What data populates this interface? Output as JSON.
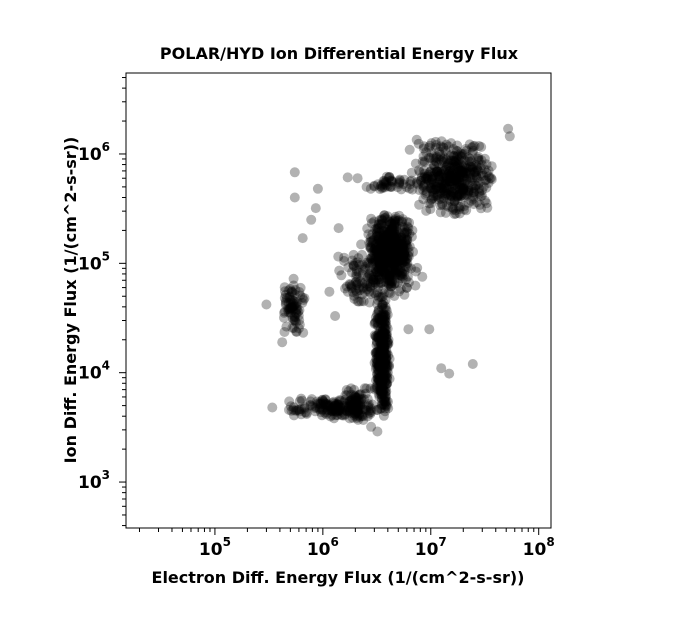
{
  "chart_data": {
    "type": "scatter",
    "title": "POLAR/HYD  Ion Differential Energy Flux",
    "xlabel": "Electron Diff. Energy Flux (1/(cm^2-s-sr))",
    "ylabel": "Ion Diff. Energy Flux (1/(cm^2-s-sr))",
    "xscale": "log",
    "yscale": "log",
    "xlim": [
      15000,
      130000000
    ],
    "ylim": [
      380,
      5500000
    ],
    "x_ticks": [
      {
        "base": "10",
        "exp": "5"
      },
      {
        "base": "10",
        "exp": "6"
      },
      {
        "base": "10",
        "exp": "7"
      },
      {
        "base": "10",
        "exp": "8"
      }
    ],
    "x_tick_values": [
      100000,
      1000000,
      10000000,
      100000000
    ],
    "y_ticks": [
      {
        "base": "10",
        "exp": "3"
      },
      {
        "base": "10",
        "exp": "4"
      },
      {
        "base": "10",
        "exp": "5"
      },
      {
        "base": "10",
        "exp": "6"
      }
    ],
    "y_tick_values": [
      1000,
      10000,
      100000,
      1000000
    ],
    "grid": false,
    "marker_color": "#000000",
    "marker_opacity": 0.3,
    "clusters": [
      {
        "x": [
          2500000,
          7000000
        ],
        "y": [
          60000,
          300000
        ],
        "n": 500
      },
      {
        "x": [
          6000000,
          40000000
        ],
        "y": [
          250000,
          1400000
        ],
        "n": 450
      },
      {
        "x": [
          3000000,
          4200000
        ],
        "y": [
          3500,
          60000
        ],
        "n": 350
      },
      {
        "x": [
          450000,
          3500000
        ],
        "y": [
          3800,
          6000
        ],
        "n": 150
      },
      {
        "x": [
          1500000,
          2800000
        ],
        "y": [
          3500,
          8000
        ],
        "n": 80
      },
      {
        "x": [
          380000,
          700000
        ],
        "y": [
          20000,
          80000
        ],
        "n": 80
      },
      {
        "x": [
          1200000,
          9000000
        ],
        "y": [
          40000,
          160000
        ],
        "n": 160
      },
      {
        "x": [
          2500000,
          7000000
        ],
        "y": [
          450000,
          650000
        ],
        "n": 40
      }
    ],
    "points": [
      {
        "x": 550000,
        "y": 680000
      },
      {
        "x": 550000,
        "y": 400000
      },
      {
        "x": 1700000,
        "y": 610000
      },
      {
        "x": 2100000,
        "y": 600000
      },
      {
        "x": 900000,
        "y": 480000
      },
      {
        "x": 860000,
        "y": 320000
      },
      {
        "x": 1400000,
        "y": 210000
      },
      {
        "x": 650000,
        "y": 170000
      },
      {
        "x": 780000,
        "y": 250000
      },
      {
        "x": 1150000,
        "y": 55000
      },
      {
        "x": 2100000,
        "y": 45000
      },
      {
        "x": 6200000,
        "y": 25000
      },
      {
        "x": 9700000,
        "y": 25000
      },
      {
        "x": 12500000,
        "y": 11000
      },
      {
        "x": 14800000,
        "y": 9800
      },
      {
        "x": 24500000,
        "y": 12000
      },
      {
        "x": 52000000,
        "y": 1700000
      },
      {
        "x": 54000000,
        "y": 1450000
      },
      {
        "x": 420000,
        "y": 19000
      },
      {
        "x": 300000,
        "y": 42000
      },
      {
        "x": 630000,
        "y": 5800
      },
      {
        "x": 340000,
        "y": 4800
      },
      {
        "x": 1100000,
        "y": 4300
      },
      {
        "x": 3200000,
        "y": 2900
      },
      {
        "x": 2800000,
        "y": 3200
      },
      {
        "x": 1300000,
        "y": 33000
      }
    ]
  }
}
